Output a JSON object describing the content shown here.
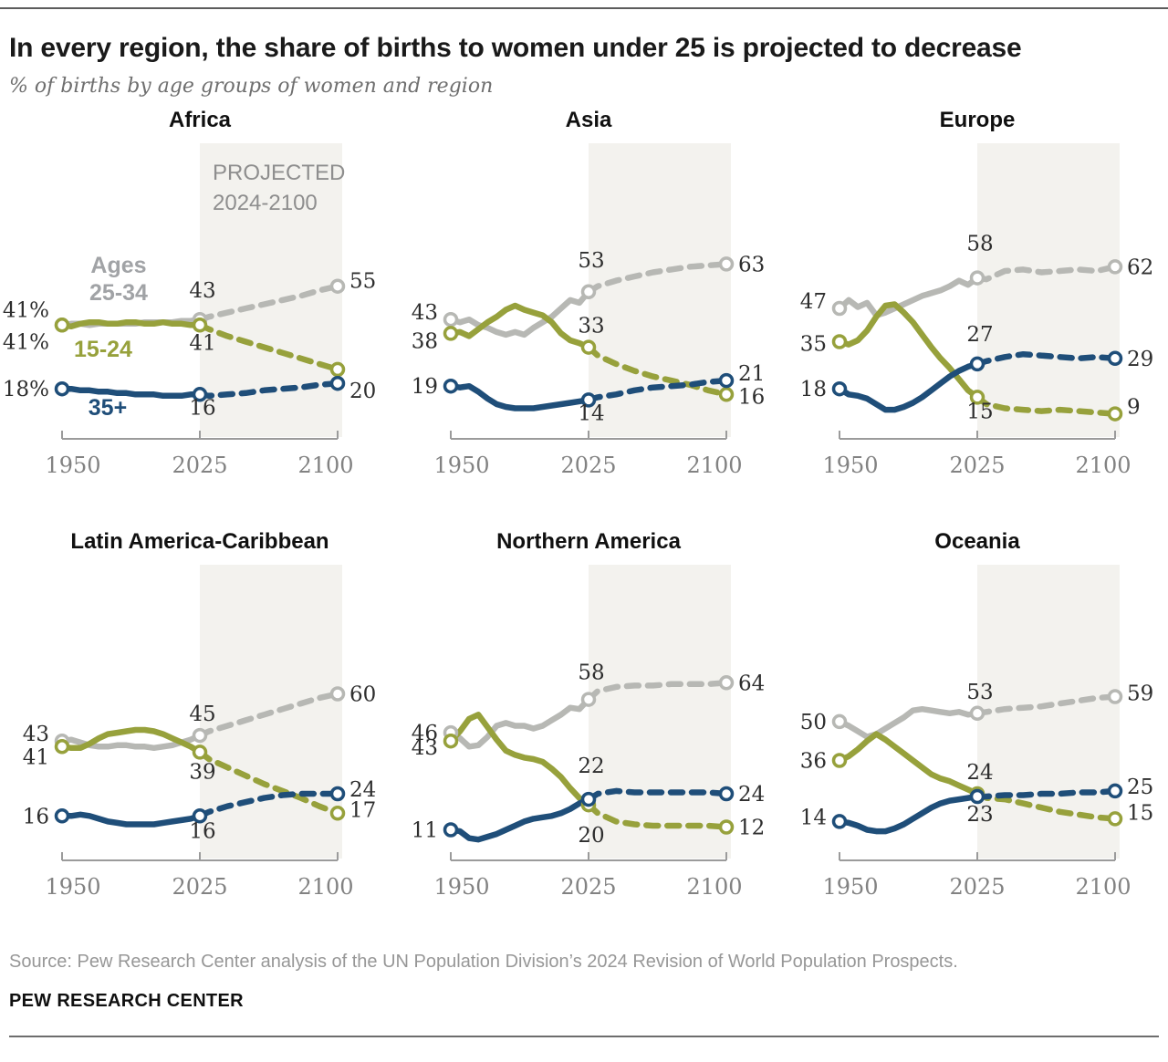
{
  "header": {
    "title": "In every region, the share of births to women under 25 is projected to decrease",
    "subtitle": "% of births by age groups of women and region"
  },
  "projected_note": {
    "line1": "PROJECTED",
    "line2": "2024-2100"
  },
  "legend": {
    "gray_line1": "Ages",
    "gray_line2": "25-34",
    "olive": "15-24",
    "blue": "35+"
  },
  "colors": {
    "gray": "#b7b8b4",
    "olive": "#97a13c",
    "blue": "#1f4e79",
    "legend_gray": "#a1a3a6",
    "band": "#f3f2ee",
    "value_label": "#2e2e2e",
    "tick_label": "#828282"
  },
  "axis": {
    "tick_labels": [
      "1950",
      "2025",
      "2100"
    ]
  },
  "chart_config": {
    "years_historical": [
      1950,
      1955,
      1960,
      1965,
      1970,
      1975,
      1980,
      1985,
      1990,
      1995,
      2000,
      2005,
      2010,
      2015,
      2020,
      2025
    ],
    "years_projected": [
      2025,
      2030,
      2040,
      2050,
      2060,
      2070,
      2080,
      2090,
      2100
    ],
    "marker_years": [
      1950,
      2025,
      2100
    ],
    "ylim": [
      0,
      70
    ]
  },
  "chart_data": [
    {
      "title": "Africa",
      "type": "line",
      "show_projected_note": true,
      "show_legend": true,
      "series": [
        {
          "age_group": "25-34",
          "color": "gray",
          "historical": [
            41,
            41.5,
            41.5,
            41,
            41.5,
            41.5,
            41.5,
            41.5,
            41.5,
            42,
            42,
            42,
            42,
            42.5,
            42.5,
            43
          ],
          "projected": [
            43,
            44,
            45.5,
            47,
            48.5,
            50,
            51.5,
            53.5,
            55
          ],
          "labels": {
            "start": {
              "text": "41%",
              "dy": -17
            },
            "mid": {
              "text": "43",
              "placement": "above",
              "dy": -8
            },
            "end": {
              "text": "55",
              "dy": -6
            }
          }
        },
        {
          "age_group": "15-24",
          "color": "olive",
          "historical": [
            41,
            40.5,
            41.5,
            42,
            42,
            41.5,
            41.5,
            42,
            42,
            41.5,
            41.5,
            42,
            41.5,
            41.5,
            41,
            41
          ],
          "projected": [
            41,
            39.5,
            37,
            35,
            33,
            31,
            29,
            27,
            25
          ],
          "labels": {
            "start": {
              "text": "41%",
              "dy": 18
            },
            "mid": {
              "text": "41",
              "placement": "below",
              "dy": -7
            }
          }
        },
        {
          "age_group": "35+",
          "color": "blue",
          "historical": [
            18,
            18,
            17.5,
            17.5,
            17,
            17,
            16.5,
            16.5,
            16,
            16,
            16,
            15.5,
            15.5,
            15.5,
            16,
            16
          ],
          "projected": [
            16,
            15.5,
            16,
            16.5,
            17.5,
            18,
            18.5,
            19.5,
            20
          ],
          "labels": {
            "start": {
              "text": "18%",
              "dy": 0
            },
            "mid": {
              "text": "16",
              "placement": "below",
              "dy": -12
            },
            "end": {
              "text": "20",
              "dy": 8
            }
          }
        }
      ]
    },
    {
      "title": "Asia",
      "type": "line",
      "show_projected_note": false,
      "show_legend": false,
      "series": [
        {
          "age_group": "25-34",
          "color": "gray",
          "historical": [
            43,
            42,
            43,
            41,
            40,
            38.5,
            37.5,
            38.5,
            37.5,
            40,
            42,
            44,
            47,
            50,
            49,
            53
          ],
          "projected": [
            53,
            55,
            57,
            58.5,
            60,
            61,
            62,
            62.5,
            63
          ],
          "labels": {
            "start": {
              "text": "43",
              "dy": -8
            },
            "mid": {
              "text": "53",
              "placement": "above",
              "dy": -11
            },
            "end": {
              "text": "63",
              "dy": 0
            }
          }
        },
        {
          "age_group": "15-24",
          "color": "olive",
          "historical": [
            38,
            38.5,
            37,
            39.5,
            42,
            44,
            46.5,
            48,
            46.5,
            45.5,
            44.5,
            42,
            38,
            35.5,
            34.5,
            33
          ],
          "projected": [
            33,
            30,
            27,
            24.5,
            22.5,
            21,
            19.5,
            17.5,
            16
          ],
          "labels": {
            "start": {
              "text": "38",
              "dy": 8
            },
            "mid": {
              "text": "33",
              "placement": "above",
              "dy": 0
            },
            "end": {
              "text": "16",
              "dy": 2
            }
          }
        },
        {
          "age_group": "35+",
          "color": "blue",
          "historical": [
            19,
            18.5,
            19,
            17,
            14.5,
            12.5,
            11.5,
            11,
            11,
            11,
            11.5,
            12,
            12.5,
            13,
            13.5,
            14
          ],
          "projected": [
            14,
            15,
            16,
            17.5,
            18.5,
            19,
            19.5,
            20.5,
            21
          ],
          "labels": {
            "start": {
              "text": "19",
              "dy": 0
            },
            "mid": {
              "text": "14",
              "placement": "below",
              "dy": -12
            },
            "end": {
              "text": "21",
              "dy": -8
            }
          }
        }
      ]
    },
    {
      "title": "Europe",
      "type": "line",
      "show_projected_note": false,
      "show_legend": false,
      "series": [
        {
          "age_group": "25-34",
          "color": "gray",
          "historical": [
            47,
            50,
            47.5,
            49,
            44.5,
            45.5,
            47,
            48.5,
            50,
            51.5,
            52.5,
            53.5,
            55,
            57,
            55.5,
            58
          ],
          "projected": [
            58,
            57.5,
            60.5,
            61,
            60,
            60.5,
            61,
            60.5,
            62
          ],
          "labels": {
            "start": {
              "text": "47",
              "dy": -8
            },
            "mid": {
              "text": "58",
              "placement": "above",
              "dy": -14
            },
            "end": {
              "text": "62",
              "dy": 0
            }
          }
        },
        {
          "age_group": "15-24",
          "color": "olive",
          "historical": [
            35,
            34,
            35.5,
            39,
            44,
            48,
            48.5,
            45.5,
            42,
            37.5,
            33,
            29,
            25.5,
            21.5,
            17.5,
            15
          ],
          "projected": [
            15,
            12.5,
            11,
            10.5,
            10,
            10.5,
            10,
            9.5,
            9
          ],
          "labels": {
            "start": {
              "text": "35",
              "dy": 2
            },
            "mid": {
              "text": "15",
              "placement": "below",
              "dy": -11
            },
            "end": {
              "text": "9",
              "dy": -8
            }
          }
        },
        {
          "age_group": "35+",
          "color": "blue",
          "historical": [
            18,
            16,
            15.5,
            14.5,
            12.5,
            10.5,
            10.5,
            11.5,
            13,
            15,
            17.5,
            20,
            22.5,
            24.5,
            26,
            27
          ],
          "projected": [
            27,
            28,
            29.5,
            30.5,
            30,
            29.5,
            29,
            29.5,
            29
          ],
          "labels": {
            "start": {
              "text": "18",
              "dy": 0
            },
            "mid": {
              "text": "27",
              "placement": "above",
              "dy": -9
            },
            "end": {
              "text": "29",
              "dy": 0
            }
          }
        }
      ]
    },
    {
      "title": "Latin America-Caribbean",
      "type": "line",
      "show_projected_note": false,
      "show_legend": false,
      "series": [
        {
          "age_group": "25-34",
          "color": "gray",
          "historical": [
            43,
            43.5,
            42.5,
            41.5,
            41,
            41,
            41.5,
            41.5,
            41,
            41,
            40.5,
            41,
            41.5,
            42.5,
            43.5,
            45
          ],
          "projected": [
            45,
            46.5,
            48.5,
            50.5,
            52.5,
            54.5,
            56.5,
            58.5,
            60
          ],
          "labels": {
            "start": {
              "text": "43",
              "dy": -8
            },
            "mid": {
              "text": "45",
              "placement": "above",
              "dy": 0
            },
            "end": {
              "text": "60",
              "dy": 0
            }
          }
        },
        {
          "age_group": "15-24",
          "color": "olive",
          "historical": [
            41,
            40.5,
            40.5,
            42,
            44,
            45.5,
            46,
            46.5,
            47,
            47,
            46.5,
            45.5,
            44,
            42.5,
            41,
            39
          ],
          "projected": [
            39,
            36.5,
            33.5,
            30.5,
            27.5,
            25,
            22.5,
            19.5,
            17
          ],
          "labels": {
            "start": {
              "text": "41",
              "dy": 11
            },
            "mid": {
              "text": "39",
              "placement": "below",
              "dy": -5
            },
            "end": {
              "text": "17",
              "dy": -4
            }
          }
        },
        {
          "age_group": "35+",
          "color": "blue",
          "historical": [
            16,
            16,
            16.5,
            16,
            15,
            14,
            13.5,
            13,
            13,
            13,
            13,
            13.5,
            14,
            14.5,
            15,
            16
          ],
          "projected": [
            16,
            17.5,
            19.5,
            21,
            22.5,
            23.5,
            24,
            24,
            24
          ],
          "labels": {
            "start": {
              "text": "16",
              "dy": 0
            },
            "mid": {
              "text": "16",
              "placement": "below",
              "dy": -10
            },
            "end": {
              "text": "24",
              "dy": -5
            }
          }
        }
      ]
    },
    {
      "title": "Northern America",
      "type": "line",
      "show_projected_note": false,
      "show_legend": false,
      "series": [
        {
          "age_group": "25-34",
          "color": "gray",
          "historical": [
            46,
            44,
            41,
            41.5,
            44.5,
            48.5,
            49.5,
            48.5,
            48.5,
            47.5,
            48.5,
            50.5,
            52.5,
            55,
            54.5,
            58
          ],
          "projected": [
            58,
            61,
            62.5,
            63,
            63,
            63.5,
            63.5,
            63.5,
            64
          ],
          "labels": {
            "start": {
              "text": "46",
              "dy": 0
            },
            "mid": {
              "text": "58",
              "placement": "above",
              "dy": -6
            },
            "end": {
              "text": "64",
              "dy": 0
            }
          }
        },
        {
          "age_group": "15-24",
          "color": "olive",
          "historical": [
            43,
            46.5,
            51,
            52.5,
            48,
            43.5,
            39.5,
            38,
            37,
            36.5,
            35.5,
            33,
            30,
            26,
            22.5,
            20
          ],
          "projected": [
            20,
            17,
            14,
            13,
            12.5,
            12.5,
            12.5,
            12.5,
            12
          ],
          "labels": {
            "start": {
              "text": "43",
              "dy": 7
            },
            "mid": {
              "text": "20",
              "placement": "below",
              "dy": 7
            },
            "end": {
              "text": "12",
              "dy": 0
            }
          }
        },
        {
          "age_group": "35+",
          "color": "blue",
          "historical": [
            11,
            10.5,
            8,
            7.5,
            8.5,
            9.5,
            11,
            12.5,
            14,
            15,
            15.5,
            16,
            17,
            18.5,
            20.5,
            22
          ],
          "projected": [
            22,
            24,
            25,
            24.5,
            24.5,
            24.5,
            24.5,
            24.5,
            24
          ],
          "labels": {
            "start": {
              "text": "11",
              "dy": 0
            },
            "mid": {
              "text": "22",
              "placement": "above",
              "dy": -13
            },
            "end": {
              "text": "24",
              "dy": 0
            }
          }
        }
      ]
    },
    {
      "title": "Oceania",
      "type": "line",
      "show_projected_note": false,
      "show_legend": false,
      "series": [
        {
          "age_group": "25-34",
          "color": "gray",
          "historical": [
            50,
            48.5,
            46.5,
            44.5,
            45.5,
            47.5,
            49.5,
            51.5,
            54,
            54.5,
            54,
            53.5,
            53,
            53.5,
            52.5,
            53
          ],
          "projected": [
            53,
            53.5,
            54.5,
            55,
            55.5,
            56.5,
            57.5,
            58.5,
            59
          ],
          "labels": {
            "start": {
              "text": "50",
              "dy": 0
            },
            "mid": {
              "text": "53",
              "placement": "above",
              "dy": 0
            },
            "end": {
              "text": "59",
              "dy": -4
            }
          }
        },
        {
          "age_group": "15-24",
          "color": "olive",
          "historical": [
            36,
            37.5,
            40,
            43,
            45.5,
            43.5,
            41,
            38.5,
            36,
            33.5,
            31,
            29.5,
            28.5,
            27,
            25.5,
            24
          ],
          "projected": [
            24,
            22.5,
            22,
            20.5,
            19,
            17.5,
            16.5,
            15.5,
            15
          ],
          "labels": {
            "start": {
              "text": "36",
              "dy": 0
            },
            "mid": {
              "text": "24",
              "placement": "above",
              "dy": 0
            },
            "end": {
              "text": "15",
              "dy": -7
            }
          }
        },
        {
          "age_group": "35+",
          "color": "blue",
          "historical": [
            14,
            13.5,
            12.5,
            11,
            10.5,
            10.5,
            11.5,
            13,
            15,
            17,
            19,
            20.5,
            21.5,
            22,
            22.5,
            23
          ],
          "projected": [
            23,
            23,
            23.5,
            23.5,
            24,
            24,
            24.5,
            24.5,
            25
          ],
          "labels": {
            "start": {
              "text": "14",
              "dy": -5
            },
            "mid": {
              "text": "23",
              "placement": "below",
              "dy": -7
            },
            "end": {
              "text": "25",
              "dy": -5
            }
          }
        }
      ]
    }
  ],
  "footer": {
    "source": "Source: Pew Research Center analysis of the UN Population Division’s 2024 Revision of World Population Prospects.",
    "brand": "PEW RESEARCH CENTER"
  }
}
